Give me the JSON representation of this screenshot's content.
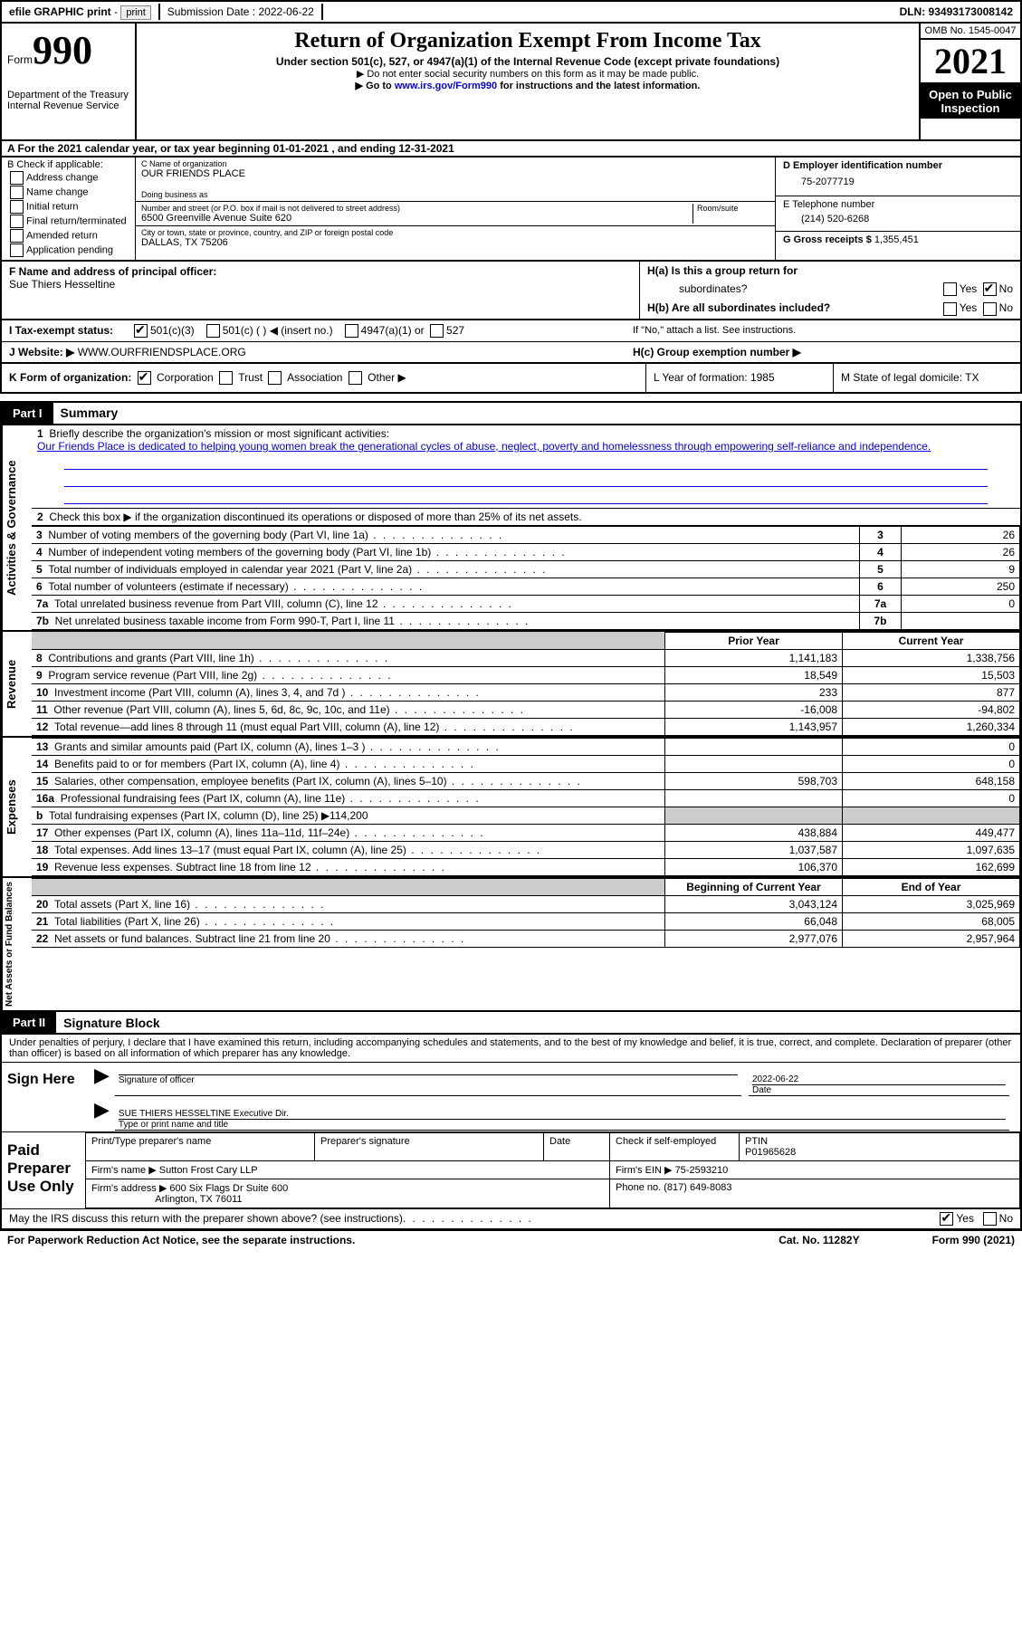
{
  "topbar": {
    "efile": "efile GRAPHIC print",
    "submission_label": "Submission Date : 2022-06-22",
    "dln": "DLN: 93493173008142"
  },
  "header": {
    "form_word": "Form",
    "form_num": "990",
    "dept": "Department of the Treasury\nInternal Revenue Service",
    "title": "Return of Organization Exempt From Income Tax",
    "sub": "Under section 501(c), 527, or 4947(a)(1) of the Internal Revenue Code (except private foundations)",
    "note1": "▶ Do not enter social security numbers on this form as it may be made public.",
    "note2_pre": "▶ Go to ",
    "note2_link": "www.irs.gov/Form990",
    "note2_post": " for instructions and the latest information.",
    "omb": "OMB No. 1545-0047",
    "year": "2021",
    "open": "Open to Public Inspection"
  },
  "rowA": "A For the 2021 calendar year, or tax year beginning 01-01-2021   , and ending 12-31-2021",
  "colB": {
    "label": "B Check if applicable:",
    "opts": [
      "Address change",
      "Name change",
      "Initial return",
      "Final return/terminated",
      "Amended return",
      "Application pending"
    ]
  },
  "colC": {
    "name_label": "C Name of organization",
    "name": "OUR FRIENDS PLACE",
    "dba_label": "Doing business as",
    "addr_label": "Number and street (or P.O. box if mail is not delivered to street address)",
    "room_label": "Room/suite",
    "addr": "6500 Greenville Avenue Suite 620",
    "city_label": "City or town, state or province, country, and ZIP or foreign postal code",
    "city": "DALLAS, TX  75206"
  },
  "colD": {
    "ein_label": "D Employer identification number",
    "ein": "75-2077719",
    "phone_label": "E Telephone number",
    "phone": "(214) 520-6268",
    "gross_label": "G Gross receipts $",
    "gross": "1,355,451"
  },
  "fg": {
    "f_label": "F Name and address of principal officer:",
    "f_name": "Sue Thiers Hesseltine",
    "ha": "H(a)  Is this a group return for",
    "ha2": "subordinates?",
    "hb": "H(b)  Are all subordinates included?",
    "hb_note": "If \"No,\" attach a list. See instructions.",
    "hc": "H(c)  Group exemption number ▶"
  },
  "lineI": {
    "label": "I   Tax-exempt status:",
    "o1": "501(c)(3)",
    "o2": "501(c) (   ) ◀ (insert no.)",
    "o3": "4947(a)(1) or",
    "o4": "527"
  },
  "lineJ": {
    "label": "J   Website: ▶",
    "val": "WWW.OURFRIENDSPLACE.ORG"
  },
  "klm": {
    "k": "K Form of organization:",
    "k_opts": [
      "Corporation",
      "Trust",
      "Association",
      "Other ▶"
    ],
    "l": "L Year of formation: 1985",
    "m": "M State of legal domicile: TX"
  },
  "part1": {
    "label": "Part I",
    "title": "Summary",
    "l1": "Briefly describe the organization's mission or most significant activities:",
    "mission": "Our Friends Place is dedicated to helping young women break the generational cycles of abuse, neglect, poverty and homelessness through empowering self-reliance and independence.",
    "l2": "Check this box ▶        if the organization discontinued its operations or disposed of more than 25% of its net assets.",
    "rows_gov": [
      {
        "n": "3",
        "d": "Number of voting members of the governing body (Part VI, line 1a)",
        "v": "26"
      },
      {
        "n": "4",
        "d": "Number of independent voting members of the governing body (Part VI, line 1b)",
        "v": "26"
      },
      {
        "n": "5",
        "d": "Total number of individuals employed in calendar year 2021 (Part V, line 2a)",
        "v": "9"
      },
      {
        "n": "6",
        "d": "Total number of volunteers (estimate if necessary)",
        "v": "250"
      },
      {
        "n": "7a",
        "d": "Total unrelated business revenue from Part VIII, column (C), line 12",
        "v": "0"
      },
      {
        "n": "7b",
        "d": "Net unrelated business taxable income from Form 990-T, Part I, line 11",
        "v": ""
      }
    ],
    "col_prior": "Prior Year",
    "col_current": "Current Year",
    "col_beg": "Beginning of Current Year",
    "col_end": "End of Year",
    "rows_rev": [
      {
        "n": "8",
        "d": "Contributions and grants (Part VIII, line 1h)",
        "p": "1,141,183",
        "c": "1,338,756"
      },
      {
        "n": "9",
        "d": "Program service revenue (Part VIII, line 2g)",
        "p": "18,549",
        "c": "15,503"
      },
      {
        "n": "10",
        "d": "Investment income (Part VIII, column (A), lines 3, 4, and 7d )",
        "p": "233",
        "c": "877"
      },
      {
        "n": "11",
        "d": "Other revenue (Part VIII, column (A), lines 5, 6d, 8c, 9c, 10c, and 11e)",
        "p": "-16,008",
        "c": "-94,802"
      },
      {
        "n": "12",
        "d": "Total revenue—add lines 8 through 11 (must equal Part VIII, column (A), line 12)",
        "p": "1,143,957",
        "c": "1,260,334"
      }
    ],
    "rows_exp": [
      {
        "n": "13",
        "d": "Grants and similar amounts paid (Part IX, column (A), lines 1–3 )",
        "p": "",
        "c": "0"
      },
      {
        "n": "14",
        "d": "Benefits paid to or for members (Part IX, column (A), line 4)",
        "p": "",
        "c": "0"
      },
      {
        "n": "15",
        "d": "Salaries, other compensation, employee benefits (Part IX, column (A), lines 5–10)",
        "p": "598,703",
        "c": "648,158"
      },
      {
        "n": "16a",
        "d": "Professional fundraising fees (Part IX, column (A), line 11e)",
        "p": "",
        "c": "0"
      },
      {
        "n": "b",
        "d": "Total fundraising expenses (Part IX, column (D), line 25) ▶114,200",
        "grey": true
      },
      {
        "n": "17",
        "d": "Other expenses (Part IX, column (A), lines 11a–11d, 11f–24e)",
        "p": "438,884",
        "c": "449,477"
      },
      {
        "n": "18",
        "d": "Total expenses. Add lines 13–17 (must equal Part IX, column (A), line 25)",
        "p": "1,037,587",
        "c": "1,097,635"
      },
      {
        "n": "19",
        "d": "Revenue less expenses. Subtract line 18 from line 12",
        "p": "106,370",
        "c": "162,699"
      }
    ],
    "rows_net": [
      {
        "n": "20",
        "d": "Total assets (Part X, line 16)",
        "p": "3,043,124",
        "c": "3,025,969"
      },
      {
        "n": "21",
        "d": "Total liabilities (Part X, line 26)",
        "p": "66,048",
        "c": "68,005"
      },
      {
        "n": "22",
        "d": "Net assets or fund balances. Subtract line 21 from line 20",
        "p": "2,977,076",
        "c": "2,957,964"
      }
    ],
    "side_gov": "Activities & Governance",
    "side_rev": "Revenue",
    "side_exp": "Expenses",
    "side_net": "Net Assets or Fund Balances"
  },
  "part2": {
    "label": "Part II",
    "title": "Signature Block",
    "decl": "Under penalties of perjury, I declare that I have examined this return, including accompanying schedules and statements, and to the best of my knowledge and belief, it is true, correct, and complete. Declaration of preparer (other than officer) is based on all information of which preparer has any knowledge.",
    "sign_here": "Sign Here",
    "sig_officer": "Signature of officer",
    "date_label": "Date",
    "date": "2022-06-22",
    "name_title": "SUE THIERS HESSELTINE  Executive Dir.",
    "name_title_label": "Type or print name and title",
    "paid": "Paid Preparer Use Only",
    "prep_name_label": "Print/Type preparer's name",
    "prep_sig_label": "Preparer's signature",
    "check_self": "Check        if self-employed",
    "ptin_label": "PTIN",
    "ptin": "P01965628",
    "firm_name_label": "Firm's name    ▶",
    "firm_name": "Sutton Frost Cary LLP",
    "firm_ein_label": "Firm's EIN ▶",
    "firm_ein": "75-2593210",
    "firm_addr_label": "Firm's address ▶",
    "firm_addr1": "600 Six Flags Dr Suite 600",
    "firm_addr2": "Arlington, TX  76011",
    "firm_phone_label": "Phone no.",
    "firm_phone": "(817) 649-8083",
    "discuss": "May the IRS discuss this return with the preparer shown above? (see instructions)"
  },
  "footer": {
    "pra": "For Paperwork Reduction Act Notice, see the separate instructions.",
    "cat": "Cat. No. 11282Y",
    "form": "Form 990 (2021)"
  }
}
